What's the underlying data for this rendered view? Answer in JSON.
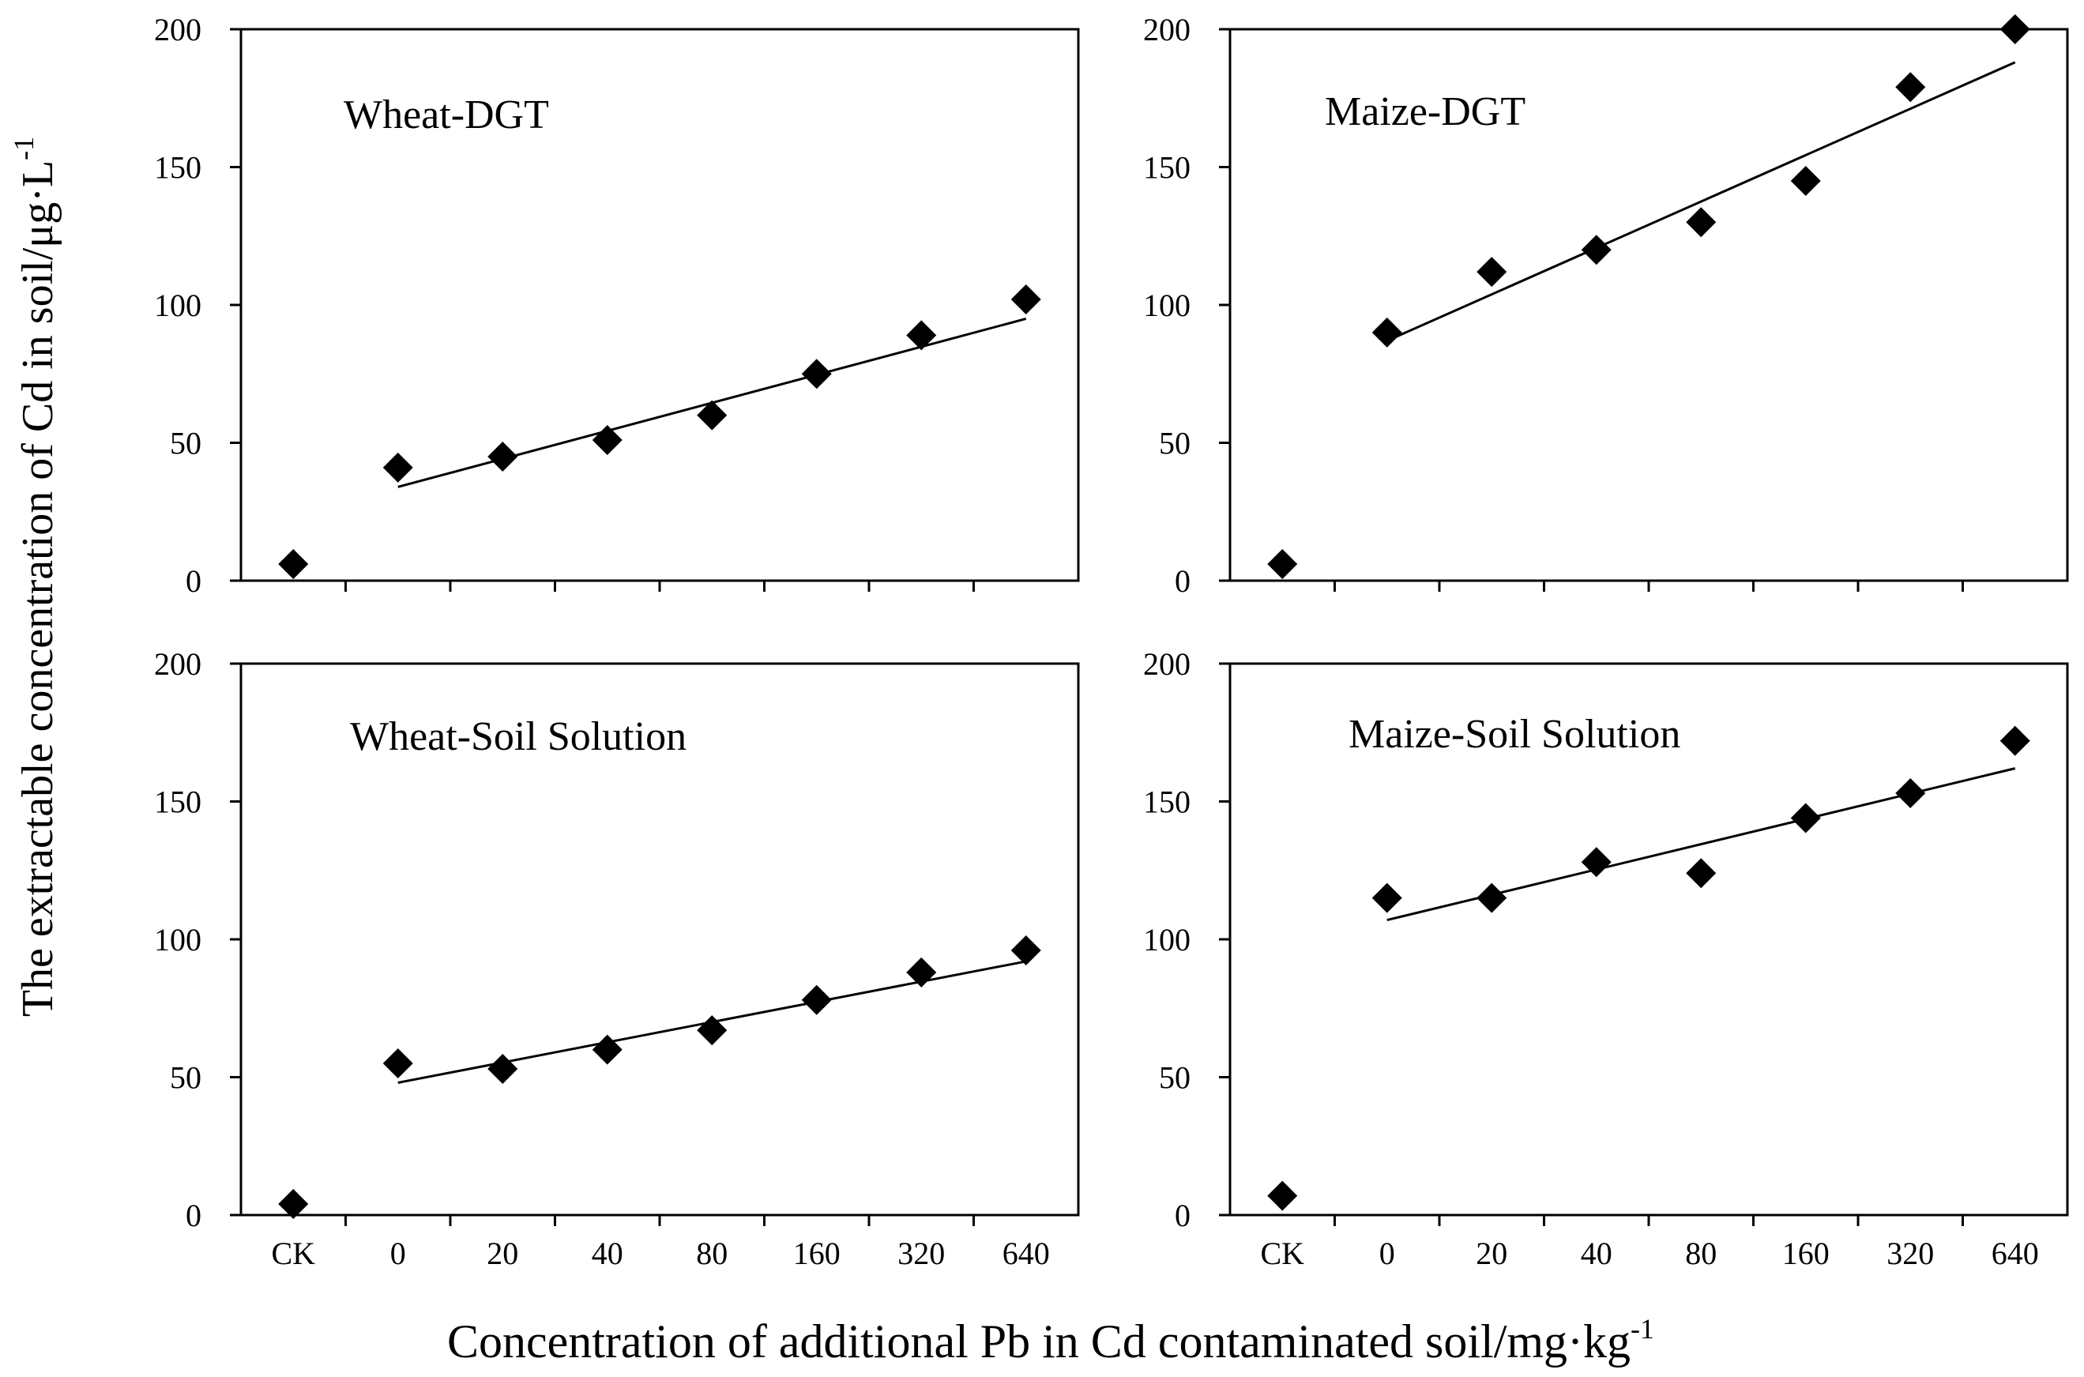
{
  "figure": {
    "xlabel": "Concentration of additional Pb in Cd contaminated soil/mg·kg",
    "xlabel_sup": "-1",
    "ylabel": "The extractable concentration of Cd in soil/μg·L",
    "ylabel_sup": "-1"
  },
  "chart_data": [
    {
      "type": "scatter",
      "title": "Wheat-DGT",
      "categories": [
        "CK",
        "0",
        "20",
        "40",
        "80",
        "160",
        "320",
        "640"
      ],
      "values": [
        6,
        41,
        45,
        51,
        60,
        75,
        89,
        102
      ],
      "fit_line": {
        "from": "0",
        "to": "640",
        "start": 34,
        "end": 95
      },
      "ylim": [
        0,
        200
      ],
      "yticks": [
        0,
        50,
        100,
        150,
        200
      ]
    },
    {
      "type": "scatter",
      "title": "Maize-DGT",
      "categories": [
        "CK",
        "0",
        "20",
        "40",
        "80",
        "160",
        "320",
        "640"
      ],
      "values": [
        6,
        90,
        112,
        120,
        130,
        145,
        179,
        200
      ],
      "fit_line": {
        "from": "0",
        "to": "640",
        "start": 87,
        "end": 188
      },
      "ylim": [
        0,
        200
      ],
      "yticks": [
        0,
        50,
        100,
        150,
        200
      ]
    },
    {
      "type": "scatter",
      "title": "Wheat-Soil Solution",
      "categories": [
        "CK",
        "0",
        "20",
        "40",
        "80",
        "160",
        "320",
        "640"
      ],
      "values": [
        4,
        55,
        53,
        60,
        67,
        78,
        88,
        96
      ],
      "fit_line": {
        "from": "0",
        "to": "640",
        "start": 48,
        "end": 92
      },
      "ylim": [
        0,
        200
      ],
      "yticks": [
        0,
        50,
        100,
        150,
        200
      ]
    },
    {
      "type": "scatter",
      "title": "Maize-Soil Solution",
      "categories": [
        "CK",
        "0",
        "20",
        "40",
        "80",
        "160",
        "320",
        "640"
      ],
      "values": [
        7,
        115,
        115,
        128,
        124,
        144,
        153,
        172
      ],
      "fit_line": {
        "from": "0",
        "to": "640",
        "start": 107,
        "end": 162
      },
      "ylim": [
        0,
        200
      ],
      "yticks": [
        0,
        50,
        100,
        150,
        200
      ]
    }
  ]
}
